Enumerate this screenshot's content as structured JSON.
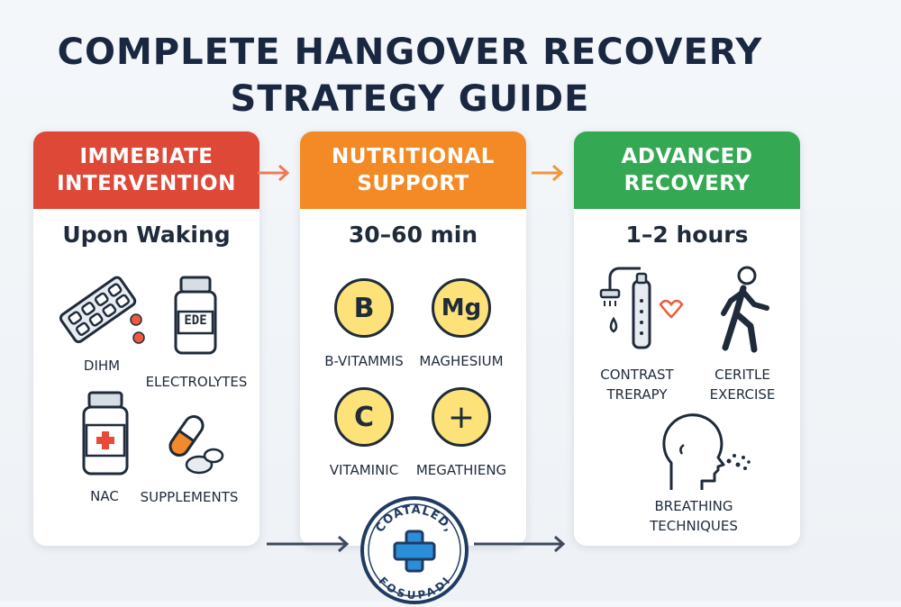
{
  "title": {
    "line1": "COMPLETE HANGOVER RECOVERY",
    "line2": "STRATEGY GUIDE"
  },
  "colors": {
    "red": "#dd4837",
    "orange": "#f38a25",
    "green": "#35a853",
    "badge": "#fde27a",
    "ink": "#1f2b3a"
  },
  "cards": [
    {
      "header1": "IMMEBIATE",
      "header2": "INTERVENTION",
      "subtitle": "Upon Waking",
      "items": [
        {
          "label": "DIHM",
          "icon": "blister-pack-icon"
        },
        {
          "label": "ELECTROLYTES",
          "icon": "bottle-icon",
          "bottle_text": "EDE"
        },
        {
          "label": "NAC",
          "icon": "medicine-bottle-icon"
        },
        {
          "label": "SUPPLEMENTS",
          "icon": "capsule-icon"
        }
      ]
    },
    {
      "header1": "NUTRITIONAL",
      "header2": "SUPPORT",
      "subtitle": "30–60 min",
      "items": [
        {
          "label": "B-VITAMMIS",
          "badge": "B"
        },
        {
          "label": "MAGHESIUM",
          "badge": "Mg"
        },
        {
          "label": "VITAMINIC",
          "badge": "C"
        },
        {
          "label": "MEGATHIENG",
          "badge": "+"
        }
      ]
    },
    {
      "header1": "ADVANCED",
      "header2": "RECOVERY",
      "subtitle": "1–2 hours",
      "items": [
        {
          "label1": "CONTRAST",
          "label2": "TRERAPY",
          "icon": "shower-icon"
        },
        {
          "label1": "CERITLE",
          "label2": "EXERCISE",
          "icon": "walking-person-icon"
        },
        {
          "label1": "BREATHING",
          "label2": "TECHNIQUES",
          "icon": "breathing-head-icon"
        }
      ]
    }
  ],
  "seal": {
    "top_text": "COATALED,",
    "bottom_text": "FOSUPADI",
    "icon": "medical-cross-icon"
  }
}
